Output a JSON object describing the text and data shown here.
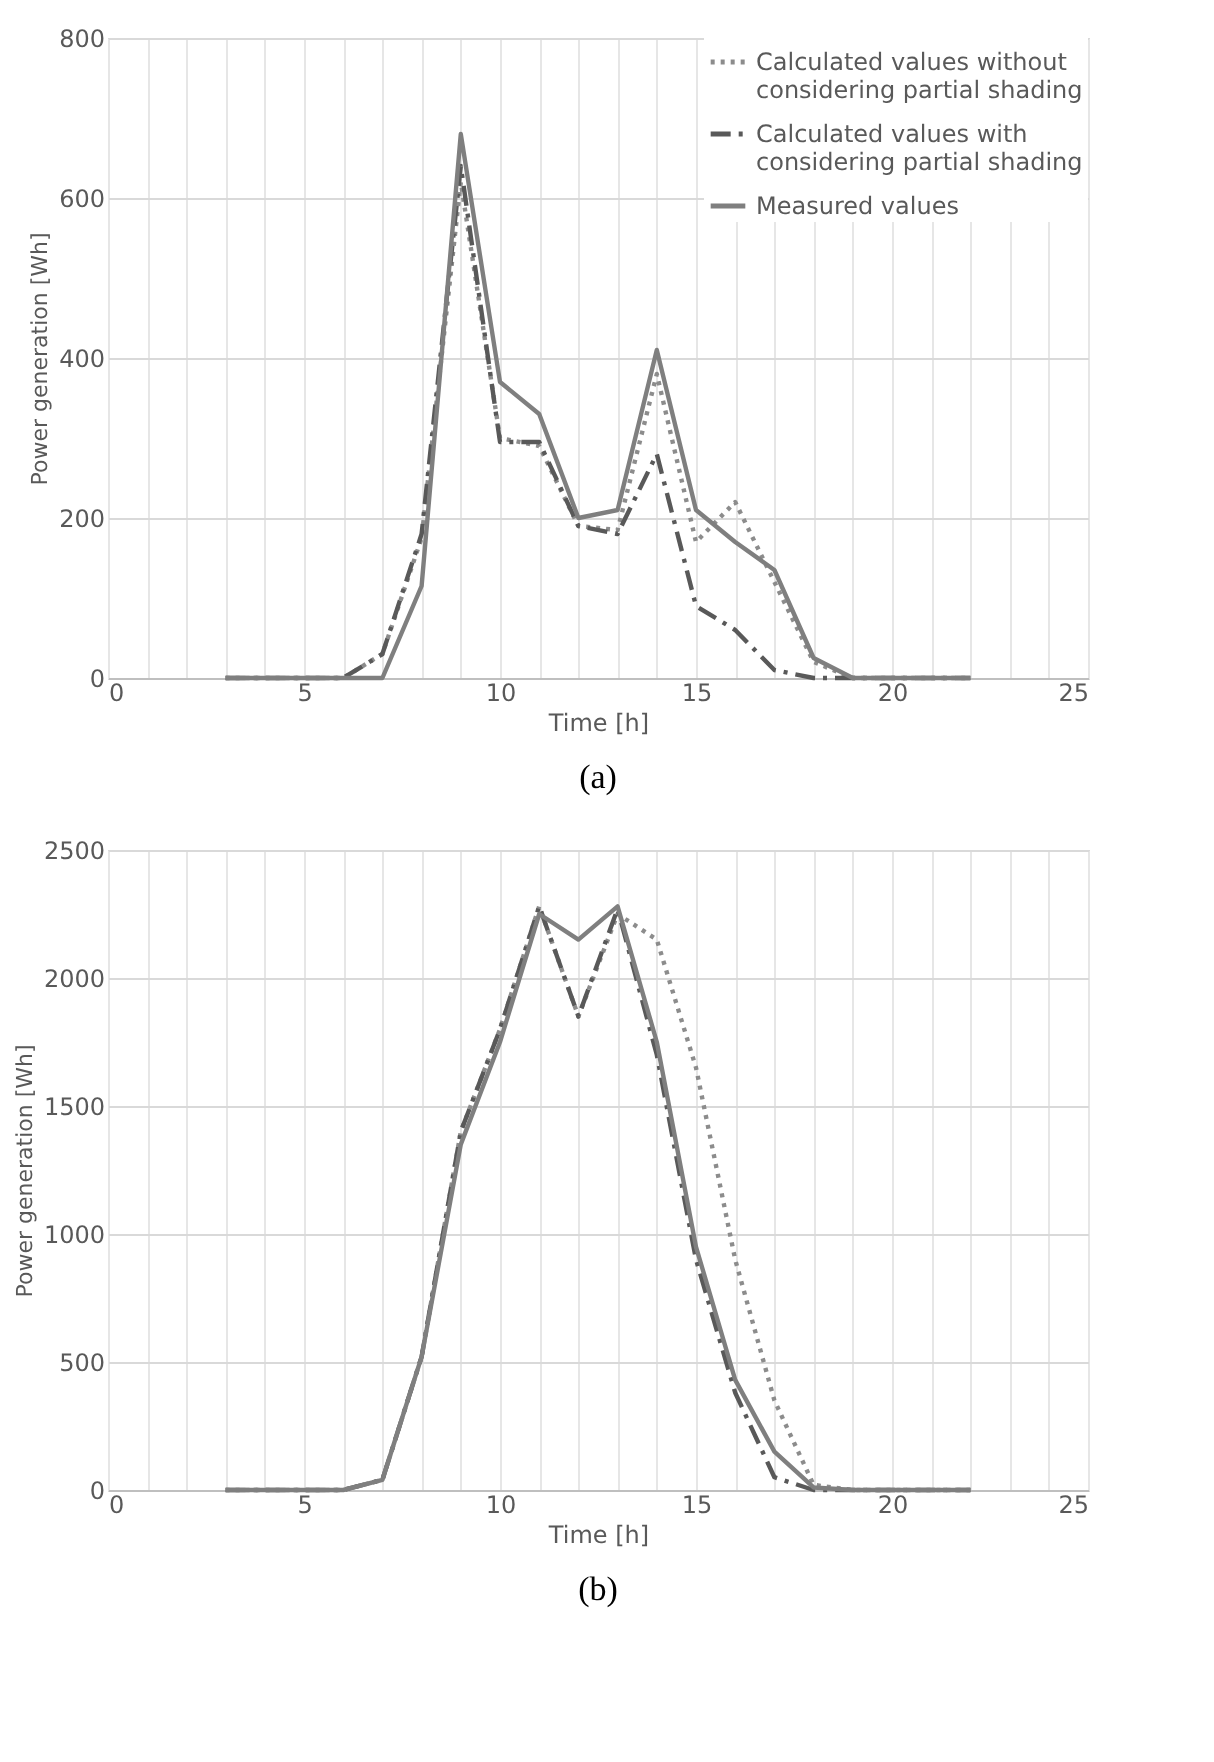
{
  "chart_data": [
    {
      "type": "line",
      "title": "(a)",
      "xlabel": "Time [h]",
      "ylabel": "Power generation [Wh]",
      "x": [
        3,
        4,
        5,
        6,
        7,
        8,
        9,
        10,
        11,
        12,
        13,
        14,
        15,
        16,
        17,
        18,
        19,
        20,
        21,
        22
      ],
      "series": [
        {
          "name": "Calculated values without considering partial shading",
          "color": "#8c8c8c",
          "line_style": "dotted",
          "values": [
            0,
            0,
            0,
            0,
            30,
            175,
            620,
            300,
            290,
            190,
            185,
            380,
            170,
            220,
            120,
            20,
            0,
            0,
            0,
            0
          ]
        },
        {
          "name": "Calculated values with considering partial shading",
          "color": "#595959",
          "line_style": "dashed",
          "values": [
            0,
            0,
            0,
            0,
            30,
            180,
            640,
            295,
            295,
            190,
            180,
            280,
            90,
            60,
            10,
            0,
            0,
            0,
            0,
            0
          ]
        },
        {
          "name": "Measured values",
          "color": "#7f7f7f",
          "line_style": "solid",
          "values": [
            0,
            0,
            0,
            0,
            0,
            115,
            680,
            370,
            330,
            200,
            210,
            410,
            210,
            170,
            135,
            25,
            0,
            0,
            0,
            0
          ]
        }
      ],
      "xlim": [
        0,
        25
      ],
      "ylim": [
        0,
        800
      ],
      "xticks": [
        0,
        {
          "value": 1,
          "label": null
        },
        {
          "value": 2,
          "label": null
        },
        {
          "value": 3,
          "label": null
        },
        {
          "value": 4,
          "label": null
        },
        5,
        {
          "value": 6,
          "label": null
        },
        {
          "value": 7,
          "label": null
        },
        {
          "value": 8,
          "label": null
        },
        {
          "value": 9,
          "label": null
        },
        10,
        {
          "value": 11,
          "label": null
        },
        {
          "value": 12,
          "label": null
        },
        {
          "value": 13,
          "label": null
        },
        {
          "value": 14,
          "label": null
        },
        15,
        {
          "value": 16,
          "label": null
        },
        {
          "value": 17,
          "label": null
        },
        {
          "value": 18,
          "label": null
        },
        {
          "value": 19,
          "label": null
        },
        20,
        {
          "value": 21,
          "label": null
        },
        {
          "value": 22,
          "label": null
        },
        {
          "value": 23,
          "label": null
        },
        {
          "value": 24,
          "label": null
        },
        25
      ],
      "yticks": [
        0,
        200,
        400,
        600,
        800
      ],
      "grid": true,
      "legend": "top right",
      "marker": "none"
    },
    {
      "type": "line",
      "title": "(b)",
      "xlabel": "Time [h]",
      "ylabel": "Power generation [Wh]",
      "x": [
        3,
        4,
        5,
        6,
        7,
        8,
        9,
        10,
        11,
        12,
        13,
        14,
        15,
        16,
        17,
        18,
        19,
        20,
        21,
        22
      ],
      "series": [
        {
          "name": "Calculated values without considering partial shading",
          "color": "#8c8c8c",
          "line_style": "dotted",
          "values": [
            0,
            0,
            0,
            0,
            40,
            520,
            1400,
            1800,
            2280,
            1850,
            2250,
            2150,
            1650,
            900,
            350,
            20,
            0,
            0,
            0,
            0
          ]
        },
        {
          "name": "Calculated values with considering partial shading",
          "color": "#595959",
          "line_style": "dashed",
          "values": [
            0,
            0,
            0,
            0,
            40,
            520,
            1400,
            1800,
            2280,
            1850,
            2270,
            1700,
            900,
            380,
            50,
            0,
            0,
            0,
            0,
            0
          ]
        },
        {
          "name": "Measured values",
          "color": "#7f7f7f",
          "line_style": "solid",
          "values": [
            0,
            0,
            0,
            0,
            40,
            520,
            1350,
            1750,
            2250,
            2150,
            2280,
            1750,
            950,
            430,
            150,
            10,
            0,
            0,
            0,
            0
          ]
        }
      ],
      "xlim": [
        0,
        25
      ],
      "ylim": [
        0,
        2500
      ],
      "xticks": [
        0,
        {
          "value": 1,
          "label": null
        },
        {
          "value": 2,
          "label": null
        },
        {
          "value": 3,
          "label": null
        },
        {
          "value": 4,
          "label": null
        },
        5,
        {
          "value": 6,
          "label": null
        },
        {
          "value": 7,
          "label": null
        },
        {
          "value": 8,
          "label": null
        },
        {
          "value": 9,
          "label": null
        },
        10,
        {
          "value": 11,
          "label": null
        },
        {
          "value": 12,
          "label": null
        },
        {
          "value": 13,
          "label": null
        },
        {
          "value": 14,
          "label": null
        },
        15,
        {
          "value": 16,
          "label": null
        },
        {
          "value": 17,
          "label": null
        },
        {
          "value": 18,
          "label": null
        },
        {
          "value": 19,
          "label": null
        },
        20,
        {
          "value": 21,
          "label": null
        },
        {
          "value": 22,
          "label": null
        },
        {
          "value": 23,
          "label": null
        },
        {
          "value": 24,
          "label": null
        },
        25
      ],
      "yticks": [
        0,
        500,
        1000,
        1500,
        2000,
        2500
      ],
      "grid": true,
      "legend": "top right",
      "marker": "none"
    }
  ]
}
